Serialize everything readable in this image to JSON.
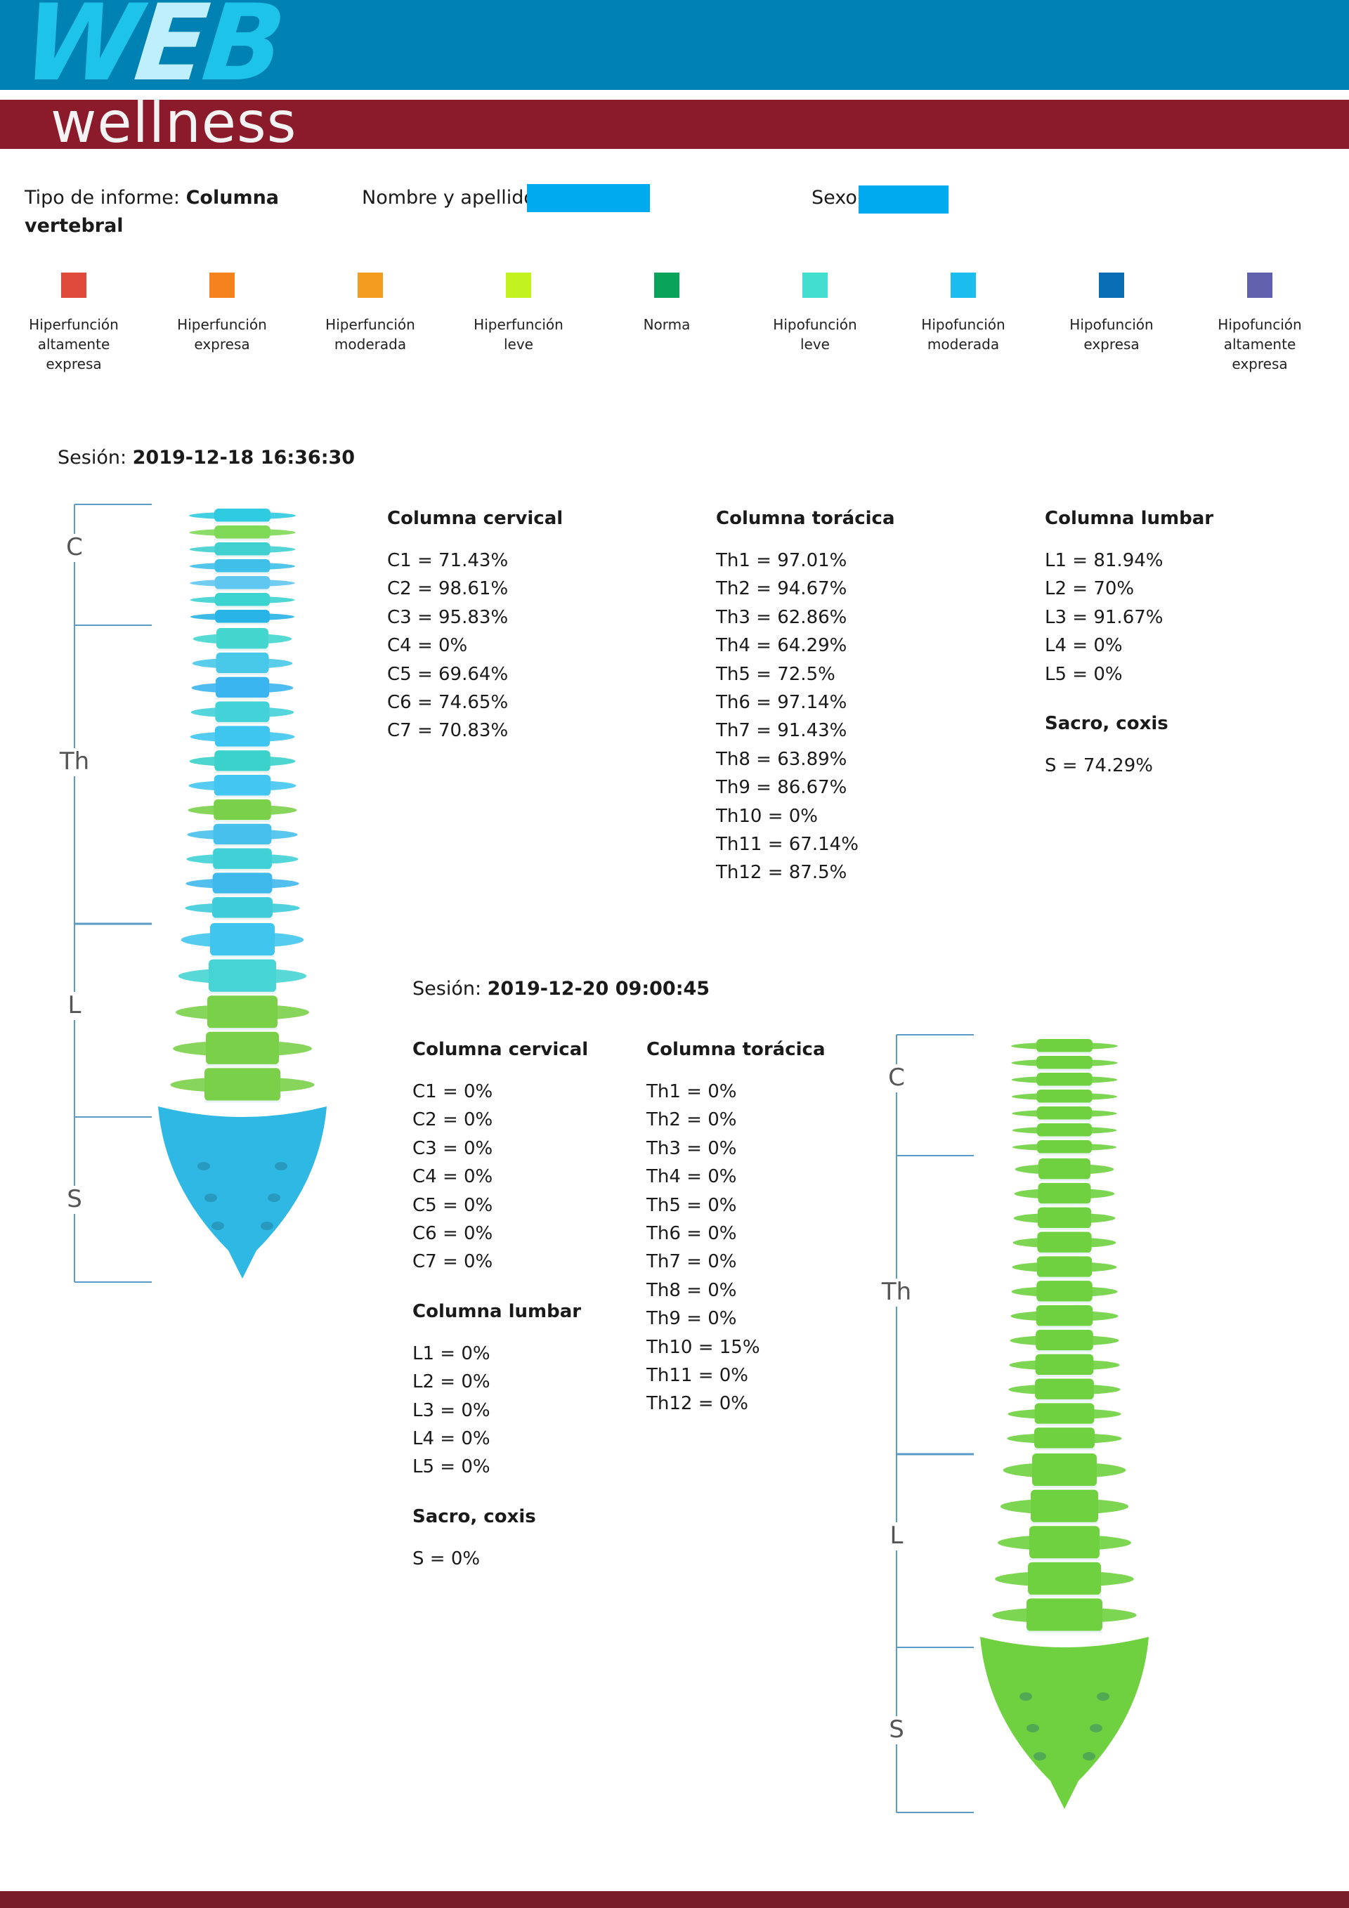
{
  "header": {
    "logo_web_1": "W",
    "logo_web_2": "E",
    "logo_web_3": "B",
    "logo_wellness": "wellness"
  },
  "info": {
    "report_type_label": "Tipo de informe:",
    "report_type_line1": "Columna",
    "report_type_line2": "vertebral",
    "name_label": "Nombre y apellido :",
    "sex_label": "Sexo:"
  },
  "legend": [
    {
      "color": "#e04a3a",
      "l1": "Hiperfunción",
      "l2": "altamente",
      "l3": "expresa"
    },
    {
      "color": "#f5821f",
      "l1": "Hiperfunción",
      "l2": "expresa",
      "l3": ""
    },
    {
      "color": "#f39c1e",
      "l1": "Hiperfunción",
      "l2": "moderada",
      "l3": ""
    },
    {
      "color": "#c3f31e",
      "l1": "Hiperfunción",
      "l2": "leve",
      "l3": ""
    },
    {
      "color": "#0aa35a",
      "l1": "Norma",
      "l2": "",
      "l3": ""
    },
    {
      "color": "#42dfd0",
      "l1": "Hipofunción",
      "l2": "leve",
      "l3": ""
    },
    {
      "color": "#1bbcee",
      "l1": "Hipofunción",
      "l2": "moderada",
      "l3": ""
    },
    {
      "color": "#0a6eb4",
      "l1": "Hipofunción",
      "l2": "expresa",
      "l3": ""
    },
    {
      "color": "#6160ad",
      "l1": "Hipofunción",
      "l2": "altamente",
      "l3": "expresa"
    }
  ],
  "session1": {
    "label": "Sesión:",
    "datetime": "2019-12-18 16:36:30",
    "cervical_title": "Columna cervical",
    "cervical": [
      "C1 = 71.43%",
      "C2 = 98.61%",
      "C3 = 95.83%",
      "C4 = 0%",
      "C5 = 69.64%",
      "C6 = 74.65%",
      "C7 = 70.83%"
    ],
    "thoracic_title": "Columna torácica",
    "thoracic": [
      "Th1 = 97.01%",
      "Th2 = 94.67%",
      "Th3 = 62.86%",
      "Th4 = 64.29%",
      "Th5 = 72.5%",
      "Th6 = 97.14%",
      "Th7 = 91.43%",
      "Th8 = 63.89%",
      "Th9 = 86.67%",
      "Th10 = 0%",
      "Th11 = 67.14%",
      "Th12 = 87.5%"
    ],
    "lumbar_title": "Columna lumbar",
    "lumbar": [
      "L1 = 81.94%",
      "L2 = 70%",
      "L3 = 91.67%",
      "L4 = 0%",
      "L5 = 0%"
    ],
    "sacrum_title": "Sacro, coxis",
    "sacrum": "S = 74.29%"
  },
  "session2": {
    "label": "Sesión:",
    "datetime": "2019-12-20 09:00:45",
    "cervical_title": "Columna cervical",
    "cervical": [
      "C1 = 0%",
      "C2 = 0%",
      "C3 = 0%",
      "C4 = 0%",
      "C5 = 0%",
      "C6 = 0%",
      "C7 = 0%"
    ],
    "thoracic_title": "Columna torácica",
    "thoracic": [
      "Th1 = 0%",
      "Th2 = 0%",
      "Th3 = 0%",
      "Th4 = 0%",
      "Th5 = 0%",
      "Th6 = 0%",
      "Th7 = 0%",
      "Th8 = 0%",
      "Th9 = 0%",
      "Th10 = 15%",
      "Th11 = 0%",
      "Th12 = 0%"
    ],
    "lumbar_title": "Columna lumbar",
    "lumbar": [
      "L1 = 0%",
      "L2 = 0%",
      "L3 = 0%",
      "L4 = 0%",
      "L5 = 0%"
    ],
    "sacrum_title": "Sacro, coxis",
    "sacrum": "S = 0%"
  },
  "spine_regions": [
    "C",
    "Th",
    "L",
    "S"
  ],
  "spine1_colors": {
    "cervical": [
      "#2fcbe0",
      "#7ed957",
      "#3fd0cf",
      "#3ec0e8",
      "#60c8f0",
      "#3bd3d0",
      "#28b4e6"
    ],
    "thoracic": [
      "#42d6cf",
      "#48c8e8",
      "#3bb5f0",
      "#43d2d8",
      "#3fc6f0",
      "#3ad2ca",
      "#44c6f2",
      "#7bd04a",
      "#47c0ec",
      "#40d1d6",
      "#3fb8ec",
      "#3eccda"
    ],
    "lumbar": [
      "#40c6ee",
      "#47d4d4",
      "#7bd04a",
      "#7bd04a",
      "#7bd04a"
    ],
    "sacrum": "#2fb8e4"
  },
  "spine2_color": "#6fd13f"
}
